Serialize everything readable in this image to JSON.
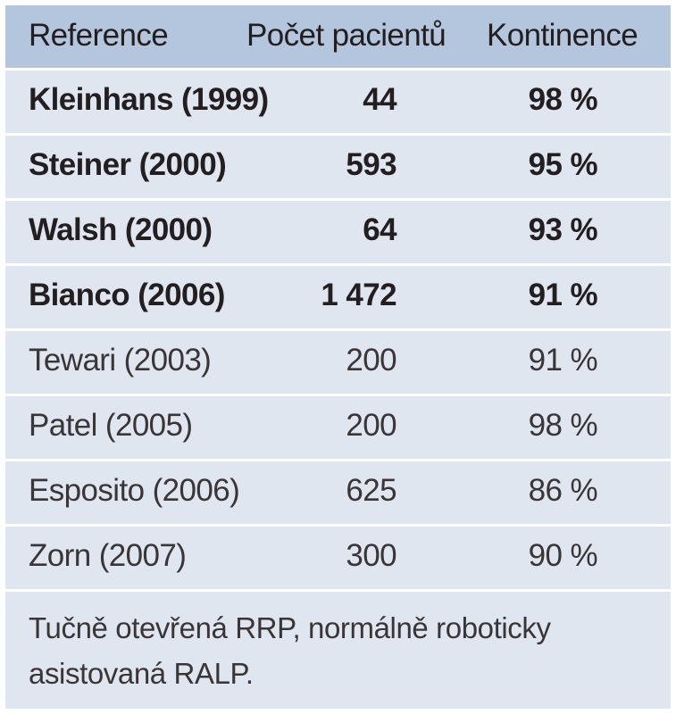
{
  "table": {
    "headers": {
      "reference": "Reference",
      "patients": "Počet pacientů",
      "continence": "Kontinence"
    },
    "rows": [
      {
        "reference": "Kleinhans (1999)",
        "patients": "44",
        "continence": "98 %",
        "style": "bold"
      },
      {
        "reference": "Steiner (2000)",
        "patients": "593",
        "continence": "95 %",
        "style": "bold"
      },
      {
        "reference": "Walsh (2000)",
        "patients": "64",
        "continence": "93 %",
        "style": "bold"
      },
      {
        "reference": "Bianco (2006)",
        "patients": "1 472",
        "continence": "91 %",
        "style": "bold"
      },
      {
        "reference": "Tewari (2003)",
        "patients": "200",
        "continence": "91 %",
        "style": "regular"
      },
      {
        "reference": "Patel (2005)",
        "patients": "200",
        "continence": "98 %",
        "style": "regular"
      },
      {
        "reference": "Esposito (2006)",
        "patients": "625",
        "continence": "86 %",
        "style": "regular"
      },
      {
        "reference": "Zorn (2007)",
        "patients": "300",
        "continence": "90 %",
        "style": "regular"
      }
    ],
    "note": "Tučně otevřená RRP, normálně roboticky asistovaná RALP."
  },
  "colors": {
    "header_bg": "#b3c6dd",
    "body_bg": "#dfe6f0",
    "divider": "#ffffff"
  }
}
